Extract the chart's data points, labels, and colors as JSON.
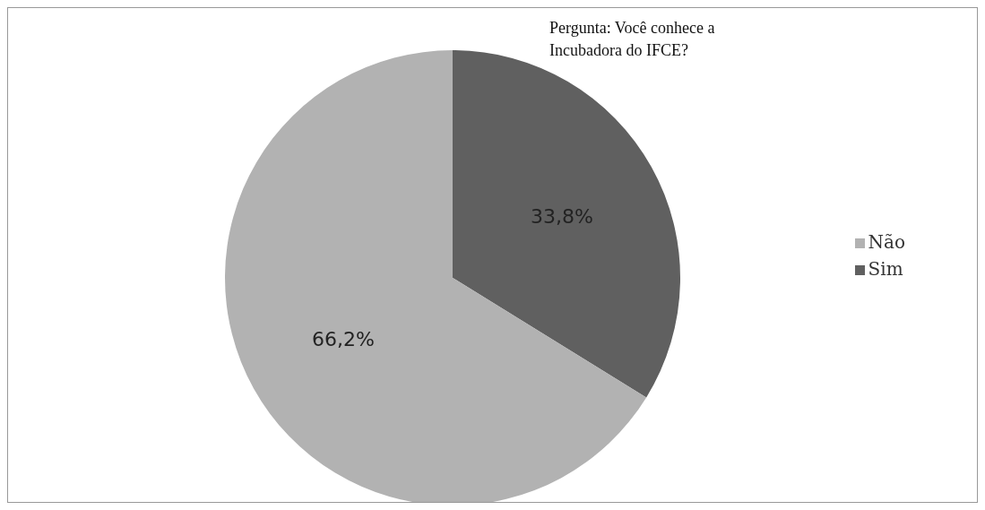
{
  "chart_data": {
    "type": "pie",
    "title": "Pergunta: Você conhece a Incubadora do IFCE?",
    "categories": [
      "Sim",
      "Não"
    ],
    "values": [
      33.8,
      66.2
    ],
    "value_labels": [
      "33,8%",
      "66,2%"
    ],
    "colors": [
      "#606060",
      "#b2b2b2"
    ],
    "legend": "right"
  }
}
